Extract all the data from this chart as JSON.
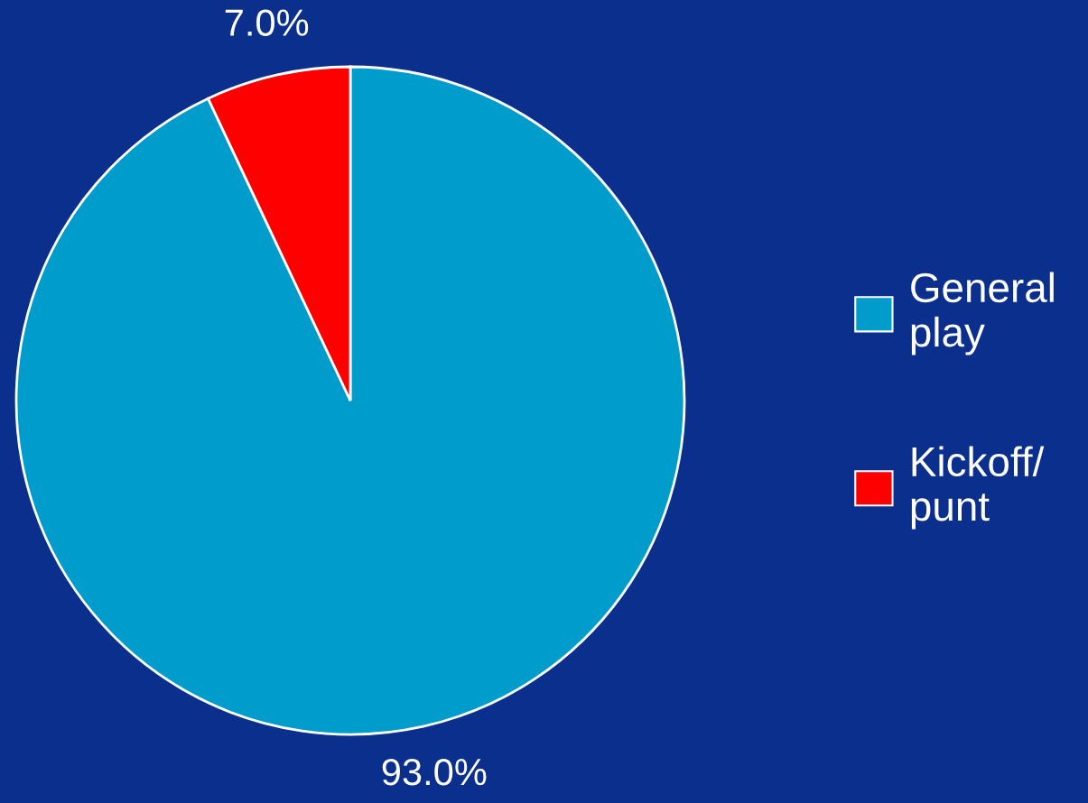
{
  "chart_data": {
    "type": "pie",
    "categories": [
      "General\nplay",
      "Kickoff/\npunt"
    ],
    "values": [
      93.0,
      7.0
    ],
    "colors": [
      "#009ccc",
      "#ff0000"
    ],
    "value_labels": [
      "93.0%",
      "7.0%"
    ],
    "legend": "right"
  }
}
